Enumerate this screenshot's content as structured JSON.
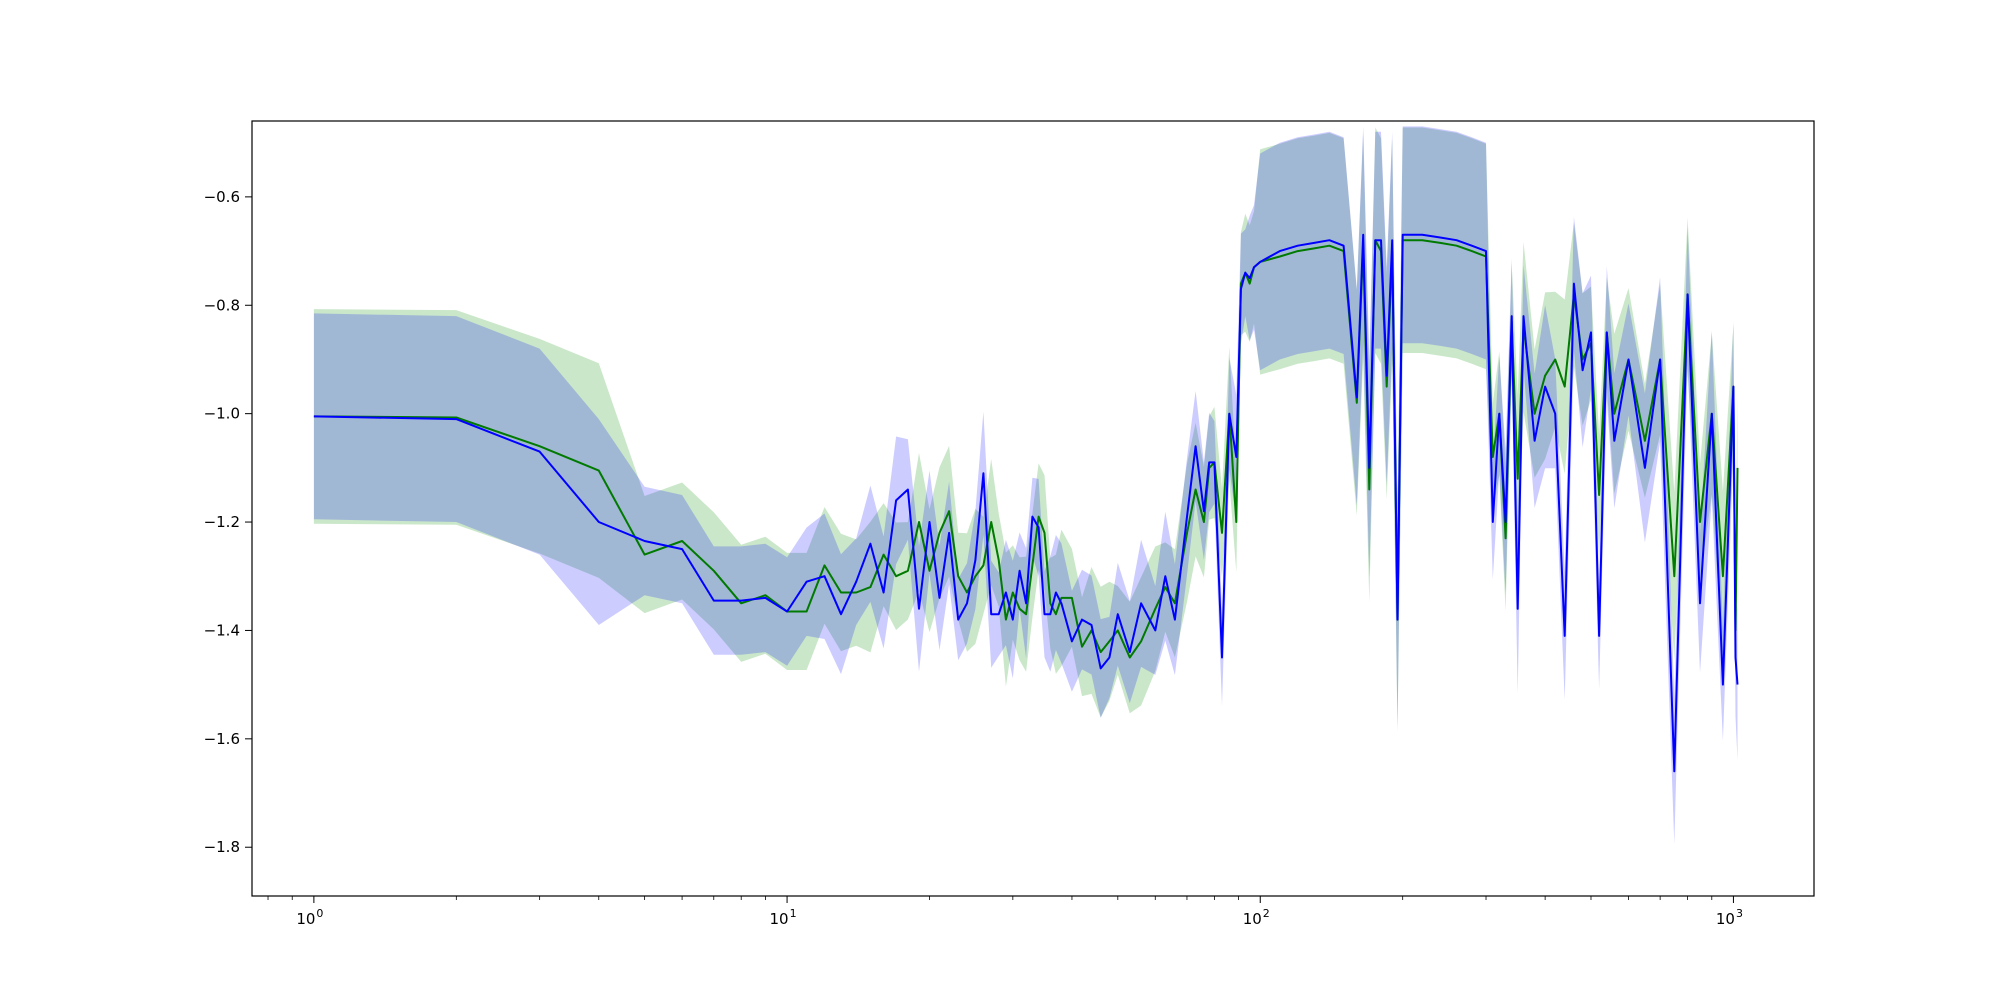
{
  "chart_data": {
    "type": "line",
    "title": "",
    "xlabel": "",
    "ylabel": "",
    "xscale": "log",
    "xlim": [
      0.74,
      1480
    ],
    "ylim": [
      -1.89,
      -0.46
    ],
    "grid": false,
    "legend": "none",
    "colors": {
      "band_green": "#2ca02c",
      "band_blue": "#0000ff",
      "line_green": "#007a00",
      "line_blue": "#0000ff",
      "axis": "#000000"
    },
    "x_ticks": [
      {
        "value": 1,
        "label": "10^0"
      },
      {
        "value": 10,
        "label": "10^1"
      },
      {
        "value": 100,
        "label": "10^2"
      },
      {
        "value": 1000,
        "label": "10^3"
      }
    ],
    "y_ticks": [
      {
        "value": -0.6,
        "label": "−0.6"
      },
      {
        "value": -0.8,
        "label": "−0.8"
      },
      {
        "value": -1.0,
        "label": "−1.0"
      },
      {
        "value": -1.2,
        "label": "−1.2"
      },
      {
        "value": -1.4,
        "label": "−1.4"
      },
      {
        "value": -1.6,
        "label": "−1.6"
      },
      {
        "value": -1.8,
        "label": "−1.8"
      }
    ],
    "series": [
      {
        "color_key": "green",
        "x": [
          1,
          2,
          3,
          4,
          5,
          6,
          7,
          8,
          9,
          10,
          11,
          12,
          13,
          14,
          15,
          16,
          17,
          18,
          19,
          20,
          21,
          22,
          23,
          24,
          25,
          26,
          27,
          28,
          29,
          30,
          31,
          32,
          33,
          34,
          35,
          36,
          37,
          38,
          40,
          42,
          44,
          46,
          48,
          50,
          53,
          56,
          60,
          63,
          66,
          70,
          73,
          76,
          78,
          80,
          83,
          86,
          89,
          91,
          93,
          95,
          97,
          100,
          110,
          120,
          130,
          140,
          150,
          160,
          165,
          170,
          175,
          180,
          185,
          190,
          195,
          200,
          220,
          240,
          260,
          280,
          300,
          310,
          320,
          330,
          340,
          350,
          360,
          380,
          400,
          420,
          440,
          460,
          480,
          500,
          520,
          540,
          560,
          600,
          650,
          700,
          750,
          800,
          850,
          900,
          950,
          1000,
          1010,
          1020
        ],
        "mean": [
          -1.005,
          -1.007,
          -1.06,
          -1.105,
          -1.26,
          -1.235,
          -1.29,
          -1.35,
          -1.335,
          -1.365,
          -1.365,
          -1.28,
          -1.33,
          -1.33,
          -1.32,
          -1.26,
          -1.3,
          -1.29,
          -1.2,
          -1.29,
          -1.22,
          -1.18,
          -1.3,
          -1.33,
          -1.3,
          -1.28,
          -1.2,
          -1.27,
          -1.38,
          -1.33,
          -1.36,
          -1.37,
          -1.28,
          -1.19,
          -1.22,
          -1.35,
          -1.37,
          -1.34,
          -1.34,
          -1.43,
          -1.4,
          -1.44,
          -1.42,
          -1.4,
          -1.45,
          -1.42,
          -1.36,
          -1.32,
          -1.35,
          -1.22,
          -1.14,
          -1.2,
          -1.1,
          -1.09,
          -1.22,
          -1.0,
          -1.2,
          -0.76,
          -0.74,
          -0.76,
          -0.73,
          -0.72,
          -0.71,
          -0.7,
          -0.695,
          -0.69,
          -0.7,
          -0.98,
          -0.69,
          -1.14,
          -0.68,
          -0.7,
          -0.95,
          -0.7,
          -1.38,
          -0.68,
          -0.68,
          -0.685,
          -0.69,
          -0.7,
          -0.71,
          -1.08,
          -1.0,
          -1.23,
          -0.83,
          -1.12,
          -0.84,
          -1.0,
          -0.93,
          -0.9,
          -0.95,
          -0.78,
          -0.9,
          -0.87,
          -1.15,
          -0.85,
          -1.0,
          -0.9,
          -1.05,
          -0.9,
          -1.3,
          -0.78,
          -1.2,
          -1.0,
          -1.3,
          -0.95,
          -1.4,
          -1.1
        ]
      },
      {
        "color_key": "blue",
        "x": [
          1,
          2,
          3,
          4,
          5,
          6,
          7,
          8,
          9,
          10,
          11,
          12,
          13,
          14,
          15,
          16,
          17,
          18,
          19,
          20,
          21,
          22,
          23,
          24,
          25,
          26,
          27,
          28,
          29,
          30,
          31,
          32,
          33,
          34,
          35,
          36,
          37,
          38,
          40,
          42,
          44,
          46,
          48,
          50,
          53,
          56,
          60,
          63,
          66,
          70,
          73,
          76,
          78,
          80,
          83,
          86,
          89,
          91,
          93,
          95,
          97,
          100,
          110,
          120,
          130,
          140,
          150,
          160,
          165,
          170,
          175,
          180,
          185,
          190,
          195,
          200,
          220,
          240,
          260,
          280,
          300,
          310,
          320,
          330,
          340,
          350,
          360,
          380,
          400,
          420,
          440,
          460,
          480,
          500,
          520,
          540,
          560,
          600,
          650,
          700,
          750,
          800,
          850,
          900,
          950,
          1000,
          1010,
          1020
        ],
        "mean": [
          -1.005,
          -1.01,
          -1.07,
          -1.2,
          -1.235,
          -1.25,
          -1.345,
          -1.345,
          -1.34,
          -1.365,
          -1.31,
          -1.3,
          -1.37,
          -1.31,
          -1.24,
          -1.33,
          -1.16,
          -1.14,
          -1.36,
          -1.2,
          -1.34,
          -1.22,
          -1.38,
          -1.35,
          -1.27,
          -1.11,
          -1.37,
          -1.37,
          -1.33,
          -1.38,
          -1.29,
          -1.35,
          -1.19,
          -1.21,
          -1.37,
          -1.37,
          -1.33,
          -1.35,
          -1.42,
          -1.38,
          -1.39,
          -1.47,
          -1.45,
          -1.37,
          -1.44,
          -1.35,
          -1.4,
          -1.3,
          -1.38,
          -1.19,
          -1.06,
          -1.18,
          -1.09,
          -1.09,
          -1.45,
          -1.0,
          -1.08,
          -0.77,
          -0.74,
          -0.75,
          -0.73,
          -0.72,
          -0.7,
          -0.69,
          -0.685,
          -0.68,
          -0.69,
          -0.97,
          -0.67,
          -1.1,
          -0.68,
          -0.68,
          -0.93,
          -0.68,
          -1.38,
          -0.67,
          -0.67,
          -0.675,
          -0.68,
          -0.69,
          -0.7,
          -1.2,
          -1.0,
          -1.2,
          -0.82,
          -1.36,
          -0.82,
          -1.05,
          -0.95,
          -1.0,
          -1.41,
          -0.76,
          -0.92,
          -0.85,
          -1.41,
          -0.85,
          -1.05,
          -0.9,
          -1.1,
          -0.9,
          -1.66,
          -0.78,
          -1.35,
          -1.0,
          -1.5,
          -0.95,
          -1.45,
          -1.5
        ]
      }
    ]
  }
}
